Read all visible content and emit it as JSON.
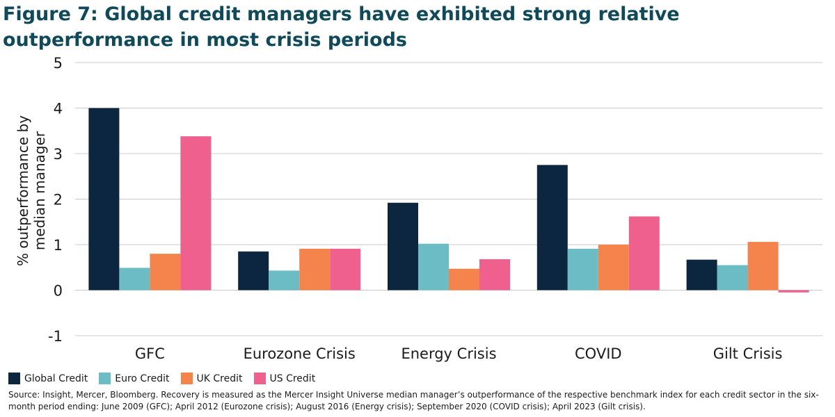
{
  "chart_data": {
    "type": "bar",
    "title": "Figure 7: Global credit managers have exhibited strong relative outperformance in most crisis periods",
    "ylabel": "% outperformance by median manager",
    "xlabel": "",
    "ylim": [
      -1,
      5
    ],
    "yticks": [
      -1,
      0,
      1,
      2,
      3,
      4,
      5
    ],
    "grid": true,
    "legend_position": "bottom-left",
    "categories": [
      "GFC",
      "Eurozone Crisis",
      "Energy Crisis",
      "COVID",
      "Gilt Crisis"
    ],
    "series": [
      {
        "name": "Global Credit",
        "color": "#0d2640",
        "values": [
          4.0,
          0.85,
          1.92,
          2.75,
          0.67
        ]
      },
      {
        "name": "Euro Credit",
        "color": "#6bbcc4",
        "values": [
          0.49,
          0.43,
          1.02,
          0.91,
          0.55
        ]
      },
      {
        "name": "UK Credit",
        "color": "#f5844c",
        "values": [
          0.8,
          0.91,
          0.47,
          1.0,
          1.06
        ]
      },
      {
        "name": "US Credit",
        "color": "#f0608e",
        "values": [
          3.38,
          0.91,
          0.68,
          1.62,
          -0.05
        ]
      }
    ],
    "source": "Source: Insight, Mercer, Bloomberg. Recovery is measured as the Mercer Insight Universe median manager’s outperformance of the respective benchmark index for each credit sector in the six-month period ending: June 2009 (GFC); April 2012 (Eurozone crisis); August 2016 (Energy crisis); September 2020 (COVID crisis); April 2023 (Gilt crisis)."
  }
}
